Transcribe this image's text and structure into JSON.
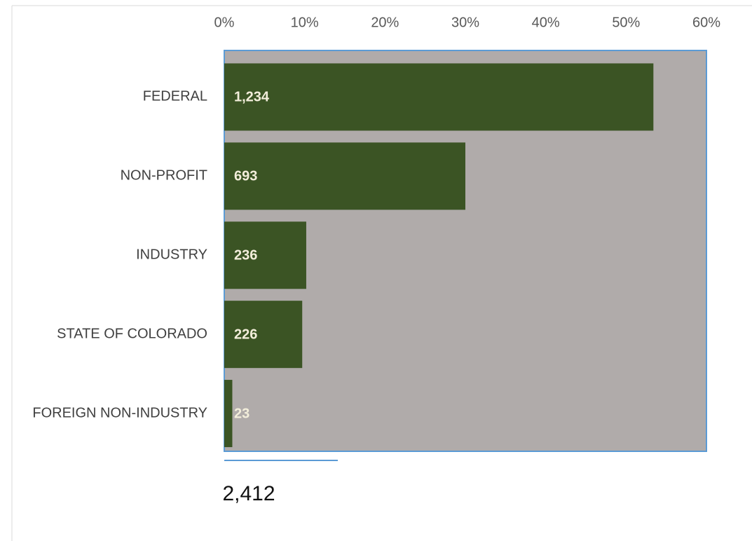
{
  "chart_data": {
    "type": "hbar",
    "categories": [
      "FEDERAL",
      "NON-PROFIT",
      "INDUSTRY",
      "STATE OF COLORADO",
      "FOREIGN NON-INDUSTRY"
    ],
    "values": [
      53.4,
      30,
      10.2,
      9.7,
      1
    ],
    "count_labels": [
      "1,234",
      "693",
      "236",
      "226",
      "23"
    ],
    "total": "2,412",
    "color": "#3b5424",
    "plot_background": "#b0abaa",
    "xlim": [
      0,
      60
    ],
    "xticks": [
      {
        "value": 0,
        "label": "0%"
      },
      {
        "value": 10,
        "label": "10%"
      },
      {
        "value": 20,
        "label": "20%"
      },
      {
        "value": 30,
        "label": "30%"
      },
      {
        "value": 40,
        "label": "40%"
      },
      {
        "value": 50,
        "label": "50%"
      },
      {
        "value": 60,
        "label": "60%"
      }
    ]
  }
}
